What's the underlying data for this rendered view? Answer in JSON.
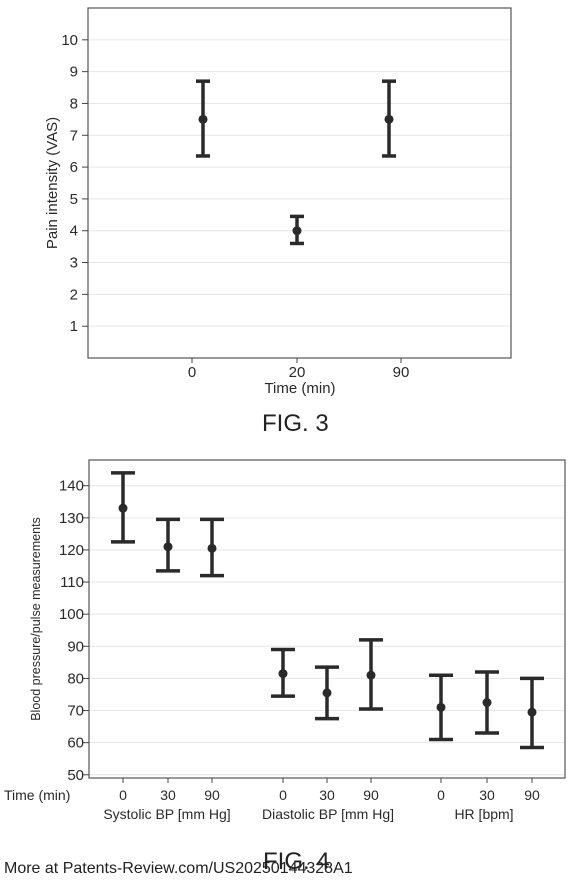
{
  "fig3": {
    "caption": "FIG. 3"
  },
  "fig4": {
    "caption": "FIG. 4"
  },
  "footer": {
    "source_note": "More at Patents-Review.com/US20250144328A1"
  },
  "chart_data": [
    {
      "type": "scatter",
      "error_bars": true,
      "title": "",
      "xlabel": "Time (min)",
      "ylabel": "Pain intensity (VAS)",
      "categories": [
        "0",
        "20",
        "90"
      ],
      "y_ticks": [
        1,
        2,
        3,
        4,
        5,
        6,
        7,
        8,
        9,
        10
      ],
      "ylim": [
        0,
        11
      ],
      "grid": true,
      "series": [
        {
          "points": [
            {
              "x": "0",
              "mean": 7.5,
              "lower": 6.35,
              "upper": 8.7
            },
            {
              "x": "20",
              "mean": 4.0,
              "lower": 3.6,
              "upper": 4.45
            },
            {
              "x": "90",
              "mean": 7.5,
              "lower": 6.35,
              "upper": 8.7
            }
          ]
        }
      ]
    },
    {
      "type": "scatter",
      "error_bars": true,
      "title": "",
      "ylabel": "Blood pressure/pulse measurements",
      "x_row_label": "Time (min)",
      "y_ticks": [
        50,
        60,
        70,
        80,
        90,
        100,
        110,
        120,
        130,
        140
      ],
      "ylim": [
        49,
        148
      ],
      "grid": true,
      "groups": [
        {
          "name": "Systolic BP [mm Hg]",
          "points": [
            {
              "x": "0",
              "mean": 133,
              "lower": 122.5,
              "upper": 144
            },
            {
              "x": "30",
              "mean": 121,
              "lower": 113.5,
              "upper": 129.5
            },
            {
              "x": "90",
              "mean": 120.5,
              "lower": 112,
              "upper": 129.5
            }
          ]
        },
        {
          "name": "Diastolic BP [mm Hg]",
          "points": [
            {
              "x": "0",
              "mean": 81.5,
              "lower": 74.5,
              "upper": 89
            },
            {
              "x": "30",
              "mean": 75.5,
              "lower": 67.5,
              "upper": 83.5
            },
            {
              "x": "90",
              "mean": 81,
              "lower": 70.5,
              "upper": 92
            }
          ]
        },
        {
          "name": "HR [bpm]",
          "points": [
            {
              "x": "0",
              "mean": 71,
              "lower": 61,
              "upper": 81
            },
            {
              "x": "30",
              "mean": 72.5,
              "lower": 63,
              "upper": 82
            },
            {
              "x": "90",
              "mean": 69.5,
              "lower": 58.5,
              "upper": 80
            }
          ]
        }
      ]
    }
  ]
}
